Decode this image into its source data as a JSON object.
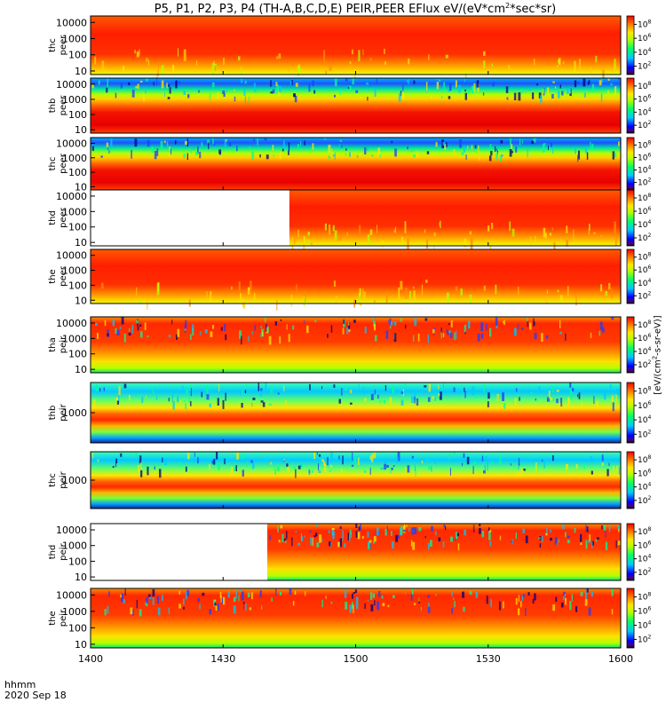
{
  "title": {
    "main": "P5, P1, P2, P3, P4 (TH-A,B,C,D,E) PEIR,PEER EFlux eV/(eV*cm",
    "sup": "2",
    "tail": "*sec*sr)"
  },
  "colorbar_units": {
    "prefix": "[eV/(cm",
    "sup": "2",
    "tail": "-s-sr-eV)]"
  },
  "x_axis": {
    "label": "hhmm",
    "date": "2020 Sep 18"
  },
  "chart_data": {
    "type": "heatmap",
    "x_range": [
      "1400",
      "1600"
    ],
    "x_ticks": [
      "1400",
      "1430",
      "1500",
      "1530",
      "1600"
    ],
    "colorbar_ticks": [
      "10",
      "10",
      "10",
      "10"
    ],
    "colorbar_exponents": [
      "2",
      "4",
      "6",
      "8"
    ],
    "panels": [
      {
        "name": "thc peer",
        "probe": "thc",
        "product": "peer",
        "y_ticks": [
          "10",
          "100",
          "1000",
          "10000"
        ]
      },
      {
        "name": "thb peer",
        "probe": "thb",
        "product": "peer",
        "y_ticks": [
          "10",
          "100",
          "1000",
          "10000"
        ]
      },
      {
        "name": "thc peer",
        "probe": "thc",
        "product": "peer",
        "y_ticks": [
          "10",
          "100",
          "1000",
          "10000"
        ]
      },
      {
        "name": "thd peer",
        "probe": "thd",
        "product": "peer",
        "y_ticks": [
          "10",
          "100",
          "1000",
          "10000"
        ],
        "data_start": "1445"
      },
      {
        "name": "the peer",
        "probe": "the",
        "product": "peer",
        "y_ticks": [
          "10",
          "100",
          "1000",
          "10000"
        ]
      },
      {
        "name": "tha peir",
        "probe": "tha",
        "product": "peir",
        "y_ticks": [
          "10",
          "100",
          "1000",
          "10000"
        ]
      },
      {
        "name": "thb peir",
        "probe": "thb",
        "product": "peir",
        "y_ticks": [
          "1000"
        ]
      },
      {
        "name": "thc peir",
        "probe": "thc",
        "product": "peir",
        "y_ticks": [
          "1000"
        ]
      },
      {
        "name": "thd peir",
        "probe": "thd",
        "product": "peir",
        "y_ticks": [
          "10",
          "100",
          "1000",
          "10000"
        ],
        "data_start": "1440"
      },
      {
        "name": "the peir",
        "probe": "the",
        "product": "peir",
        "y_ticks": [
          "10",
          "100",
          "1000",
          "10000"
        ]
      }
    ]
  }
}
